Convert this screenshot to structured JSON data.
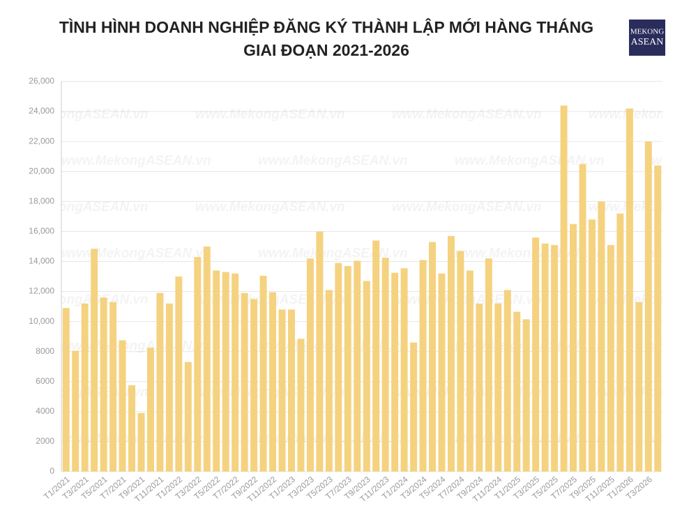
{
  "chart_data": {
    "type": "bar",
    "title": [
      "TÌNH HÌNH DOANH NGHIỆP ĐĂNG KÝ THÀNH LẬP MỚI HÀNG THÁNG",
      "GIAI ĐOẠN 2021-2026"
    ],
    "logo": [
      "MEKONG",
      "ASEAN"
    ],
    "watermark": "www.MekongASEAN.vn",
    "categories": [
      "T1/2021",
      null,
      "T3/2021",
      null,
      "T5/2021",
      null,
      "T7/2021",
      null,
      "T9/2021",
      null,
      "T11/2021",
      null,
      "T1/2022",
      null,
      "T3/2022",
      null,
      "T5/2022",
      null,
      "T7/2022",
      null,
      "T9/2022",
      null,
      "T11/2022",
      null,
      "T1/2023",
      null,
      "T3/2023",
      null,
      "T5/2023",
      null,
      "T7/2023",
      null,
      "T9/2023",
      null,
      "T11/2023",
      null,
      "T1/2024",
      null,
      "T3/2024",
      null,
      "T5/2024",
      null,
      "T7/2024",
      null,
      "T9/2024",
      null,
      "T11/2024",
      null,
      "T1/2025",
      null,
      "T3/2025",
      null,
      "T5/2025",
      null,
      "T7/2025",
      null,
      "T9/2025",
      null,
      "T11/2025",
      null,
      "T1/2026",
      null,
      "T3/2026",
      null
    ],
    "values": [
      10900,
      8050,
      11200,
      14850,
      11600,
      11300,
      8750,
      5750,
      3900,
      8250,
      11900,
      11200,
      13000,
      7300,
      14300,
      15000,
      13400,
      13300,
      13200,
      11900,
      11500,
      13050,
      11950,
      10800,
      10800,
      8850,
      14200,
      16000,
      12100,
      13900,
      13700,
      14050,
      12700,
      15400,
      14250,
      13250,
      13550,
      8600,
      14100,
      15300,
      13200,
      15700,
      14700,
      13400,
      11200,
      14200,
      11200,
      12100,
      10650,
      10150,
      15600,
      15200,
      15100,
      24400,
      16500,
      20500,
      16800,
      18000,
      15100,
      17200,
      24200,
      11300,
      22000,
      20400
    ],
    "color": "#f5d27f",
    "ylim": [
      0,
      26000
    ],
    "yticks": [
      0,
      2000,
      4000,
      6000,
      8000,
      {
        "value": 10000,
        "label": "10,000"
      },
      {
        "value": 12000,
        "label": "12,000"
      },
      {
        "value": 14000,
        "label": "14,000"
      },
      {
        "value": 16000,
        "label": "16,000"
      },
      {
        "value": 18000,
        "label": "18,000"
      },
      {
        "value": 20000,
        "label": "20,000"
      },
      {
        "value": 22000,
        "label": "22,000"
      },
      {
        "value": 24000,
        "label": "24,000"
      },
      {
        "value": 26000,
        "label": "26,000"
      }
    ],
    "grid": true
  }
}
